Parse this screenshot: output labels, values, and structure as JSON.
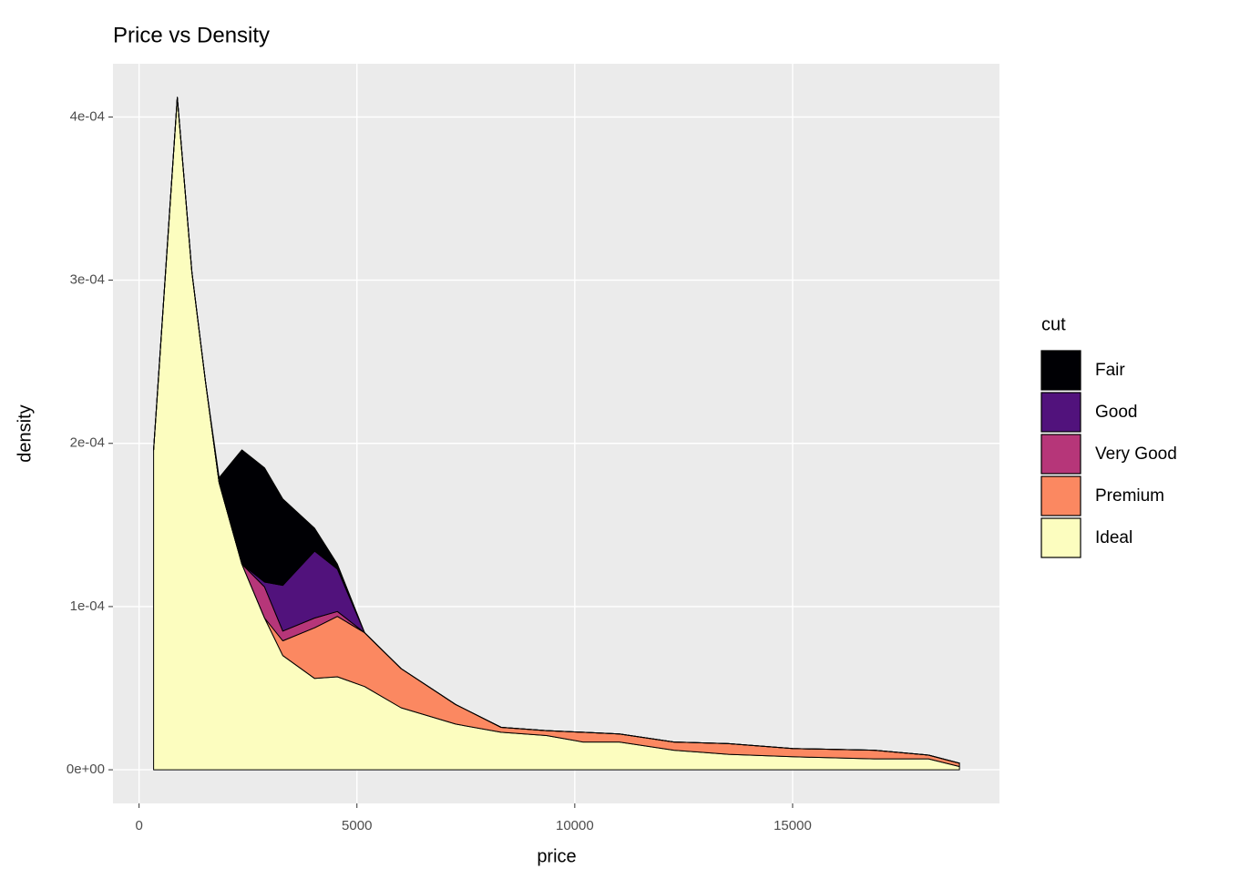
{
  "chart_data": {
    "type": "stacked-density",
    "title": "Price vs Density",
    "x_label": "price",
    "y_label": "density",
    "x": [
      334,
      877,
      1211,
      1524,
      1837,
      2359,
      2881,
      3299,
      4029,
      4551,
      5177,
      6013,
      7265,
      8309,
      9353,
      10188,
      11023,
      12276,
      13528,
      15000,
      16868,
      18121,
      18831
    ],
    "series": [
      {
        "name": "Fair",
        "color": "#000004",
        "values": [
          0,
          0,
          0,
          0,
          3e-06,
          7e-05,
          7e-05,
          5.3e-05,
          1.4e-05,
          3e-06,
          0,
          0,
          0,
          0,
          0,
          0,
          0,
          0,
          0,
          0,
          0,
          0,
          0
        ]
      },
      {
        "name": "Good",
        "color": "#51127C",
        "values": [
          0,
          0,
          0,
          0,
          0,
          0,
          3e-06,
          2.8e-05,
          4.1e-05,
          2.6e-05,
          0,
          0,
          0,
          0,
          0,
          0,
          0,
          0,
          0,
          0,
          0,
          0,
          0
        ]
      },
      {
        "name": "Very Good",
        "color": "#B63679",
        "values": [
          0,
          0,
          0,
          0,
          0,
          0,
          1.9e-05,
          6e-06,
          6e-06,
          3e-06,
          0,
          0,
          0,
          0,
          0,
          0,
          0,
          0,
          0,
          0,
          0,
          0,
          0
        ]
      },
      {
        "name": "Premium",
        "color": "#FB8861",
        "values": [
          0,
          0,
          0,
          0,
          0,
          0,
          0,
          9e-06,
          3.1e-05,
          3.7e-05,
          3.3e-05,
          2.4e-05,
          1.2e-05,
          3e-06,
          3e-06,
          6e-06,
          5e-06,
          5e-06,
          6.5e-06,
          5e-06,
          5.3e-06,
          2.3e-06,
          2e-06
        ]
      },
      {
        "name": "Ideal",
        "color": "#FCFDBF",
        "values": [
          0.000196,
          0.000412,
          0.000305,
          0.000238,
          0.000176,
          0.000126,
          9.3e-05,
          7e-05,
          5.6e-05,
          5.7e-05,
          5.1e-05,
          3.8e-05,
          2.8e-05,
          2.3e-05,
          2.1e-05,
          1.7e-05,
          1.7e-05,
          1.2e-05,
          9.5e-06,
          8e-06,
          6.7e-06,
          6.7e-06,
          2e-06
        ]
      }
    ],
    "legend_title": "cut",
    "xlim": [
      -599,
      19748
    ],
    "xticks": [
      0,
      5000,
      10000,
      15000
    ],
    "ylim": [
      -2.06e-05,
      0.0004326
    ],
    "yticks": [
      {
        "value": 0,
        "label": "0e+00"
      },
      {
        "value": 0.0001,
        "label": "1e-04"
      },
      {
        "value": 0.0002,
        "label": "2e-04"
      },
      {
        "value": 0.0003,
        "label": "3e-04"
      },
      {
        "value": 0.0004,
        "label": "4e-04"
      }
    ],
    "grid": true,
    "legend_position": "right"
  }
}
